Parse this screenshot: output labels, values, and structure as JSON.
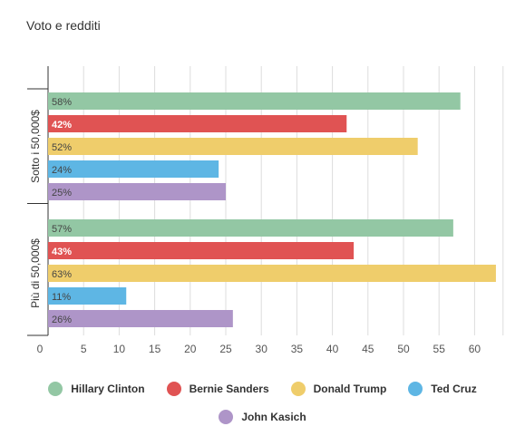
{
  "chart_data": {
    "type": "bar",
    "orientation": "horizontal",
    "title": "Voto e redditi",
    "categories": [
      "Sotto i 50,000$",
      "Più di 50,000$"
    ],
    "series": [
      {
        "name": "Hillary Clinton",
        "color": "#93c7a4",
        "values": [
          58,
          57
        ],
        "labels": [
          "58%",
          "57%"
        ],
        "label_color": "#444444"
      },
      {
        "name": "Bernie Sanders",
        "color": "#e05353",
        "values": [
          42,
          43
        ],
        "labels": [
          "42%",
          "43%"
        ],
        "label_color": "#ffffff"
      },
      {
        "name": "Donald Trump",
        "color": "#efcd6b",
        "values": [
          52,
          63
        ],
        "labels": [
          "52%",
          "63%"
        ],
        "label_color": "#444444"
      },
      {
        "name": "Ted Cruz",
        "color": "#5eb6e4",
        "values": [
          24,
          11
        ],
        "labels": [
          "24%",
          "11%"
        ],
        "label_color": "#444444"
      },
      {
        "name": "John Kasich",
        "color": "#ae95c8",
        "values": [
          25,
          26
        ],
        "labels": [
          "25%",
          "26%"
        ],
        "label_color": "#444444"
      }
    ],
    "xlim": [
      0,
      64
    ],
    "xticks": [
      "0",
      "5",
      "10",
      "15",
      "20",
      "25",
      "30",
      "35",
      "40",
      "45",
      "50",
      "55",
      "60"
    ],
    "grid": true,
    "legend_position": "bottom"
  }
}
